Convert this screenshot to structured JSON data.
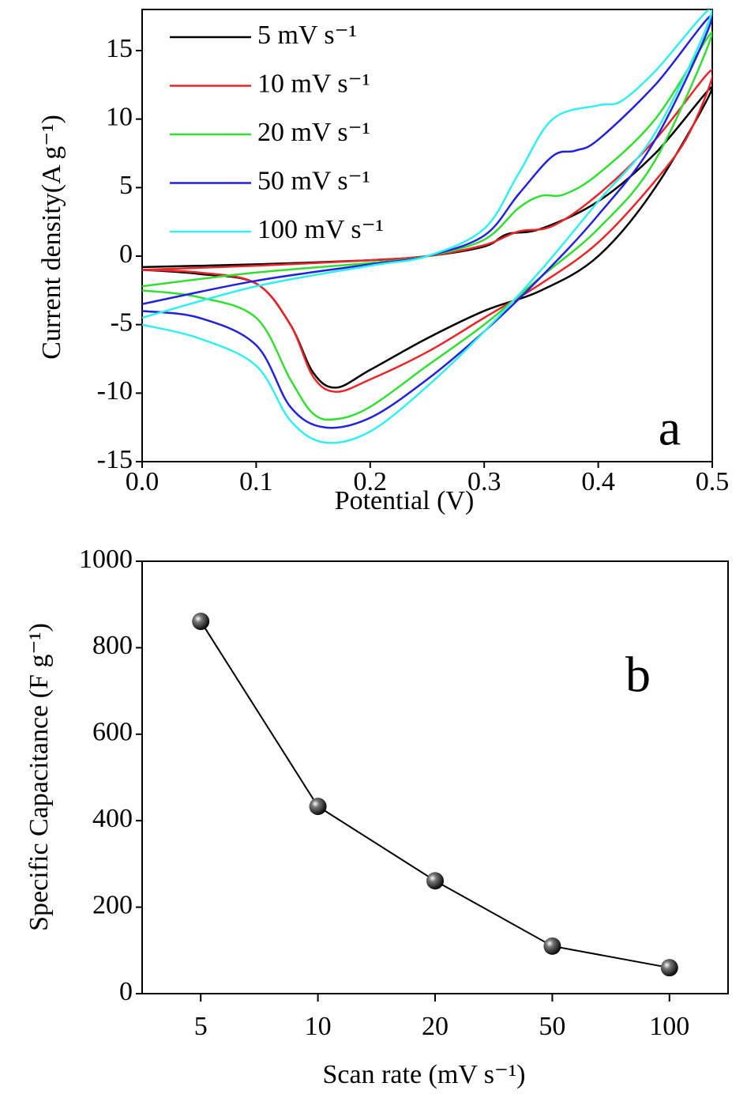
{
  "chart_data": [
    {
      "type": "line",
      "panel_label": "a",
      "xlabel": "Potential (V)",
      "ylabel": "Current density(A g⁻¹)",
      "xlim": [
        0,
        0.5
      ],
      "xticks": [
        {
          "value": 0,
          "label": "0.0"
        },
        0.1,
        0.2,
        0.3,
        0.4,
        0.5
      ],
      "ylim": [
        -15,
        18
      ],
      "yticks": [
        -15,
        -10,
        -5,
        0,
        5,
        10,
        15
      ],
      "legend": "upper left",
      "series": [
        {
          "name": "5 mV s⁻¹",
          "color": "#000000",
          "x": [
            0,
            0.1,
            0.2,
            0.25,
            0.3,
            0.32,
            0.35,
            0.4,
            0.45,
            0.5,
            0.45,
            0.4,
            0.35,
            0.3,
            0.25,
            0.2,
            0.17,
            0.15,
            0.13,
            0.1,
            0.05,
            0
          ],
          "values": [
            -0.8,
            -0.6,
            -0.3,
            0,
            0.7,
            1.6,
            2,
            4,
            7.5,
            12.3,
            5,
            0,
            -2.5,
            -4,
            -6,
            -8.3,
            -9.6,
            -8.5,
            -5,
            -2,
            -1.3,
            -1
          ]
        },
        {
          "name": "10 mV s⁻¹",
          "color": "#e8262a",
          "x": [
            0,
            0.1,
            0.2,
            0.25,
            0.3,
            0.33,
            0.36,
            0.4,
            0.45,
            0.5,
            0.48,
            0.45,
            0.4,
            0.35,
            0.3,
            0.25,
            0.2,
            0.17,
            0.15,
            0.13,
            0.1,
            0.05,
            0
          ],
          "values": [
            -1,
            -0.7,
            -0.3,
            0,
            0.8,
            1.8,
            2.2,
            4.5,
            8.5,
            13.6,
            9,
            5.5,
            1,
            -2,
            -4.5,
            -7,
            -9,
            -9.9,
            -8.8,
            -5,
            -2,
            -1.2,
            -1
          ]
        },
        {
          "name": "20 mV s⁻¹",
          "color": "#33dd33",
          "x": [
            0,
            0.1,
            0.2,
            0.25,
            0.3,
            0.33,
            0.35,
            0.37,
            0.4,
            0.45,
            0.5,
            0.45,
            0.4,
            0.35,
            0.3,
            0.25,
            0.2,
            0.17,
            0.15,
            0.13,
            0.1,
            0.05,
            0
          ],
          "values": [
            -2.2,
            -1.2,
            -0.5,
            0,
            1.2,
            3.5,
            4.4,
            4.5,
            6,
            10,
            16.3,
            7,
            2,
            -1.5,
            -5,
            -8,
            -11,
            -11.9,
            -11.5,
            -9,
            -4.5,
            -3,
            -2.5
          ]
        },
        {
          "name": "50 mV s⁻¹",
          "color": "#2222dd",
          "x": [
            0,
            0.1,
            0.2,
            0.25,
            0.3,
            0.33,
            0.36,
            0.38,
            0.4,
            0.45,
            0.5,
            0.45,
            0.4,
            0.35,
            0.3,
            0.25,
            0.2,
            0.16,
            0.13,
            0.1,
            0.05,
            0
          ],
          "values": [
            -3.5,
            -1.8,
            -0.6,
            0,
            1.5,
            4.5,
            7.3,
            7.7,
            8.5,
            12.5,
            17.5,
            8.5,
            3,
            -1.5,
            -5.5,
            -9,
            -11.8,
            -12.5,
            -11,
            -6.5,
            -4.5,
            -4
          ]
        },
        {
          "name": "100 mV s⁻¹",
          "color": "#33eeee",
          "x": [
            0,
            0.1,
            0.2,
            0.25,
            0.3,
            0.33,
            0.36,
            0.4,
            0.42,
            0.45,
            0.5,
            0.45,
            0.4,
            0.35,
            0.3,
            0.25,
            0.2,
            0.16,
            0.13,
            0.1,
            0.05,
            0
          ],
          "values": [
            -4.5,
            -2.2,
            -0.7,
            0,
            2,
            6,
            10,
            11,
            11.3,
            13.5,
            18,
            9,
            4,
            -1,
            -5.5,
            -9.5,
            -12.8,
            -13.6,
            -12,
            -8,
            -6,
            -5
          ]
        }
      ]
    },
    {
      "type": "line",
      "panel_label": "b",
      "xlabel": "Scan rate (mV s⁻¹)",
      "ylabel": "Specific Capacitance (F g⁻¹)",
      "categories": [
        "5",
        "10",
        "20",
        "50",
        "100"
      ],
      "ylim": [
        0,
        1000
      ],
      "yticks": [
        0,
        200,
        400,
        600,
        800,
        1000
      ],
      "markers": true,
      "series": [
        {
          "color": "#000000",
          "values": [
            861,
            433,
            261,
            110,
            60
          ]
        }
      ]
    }
  ]
}
